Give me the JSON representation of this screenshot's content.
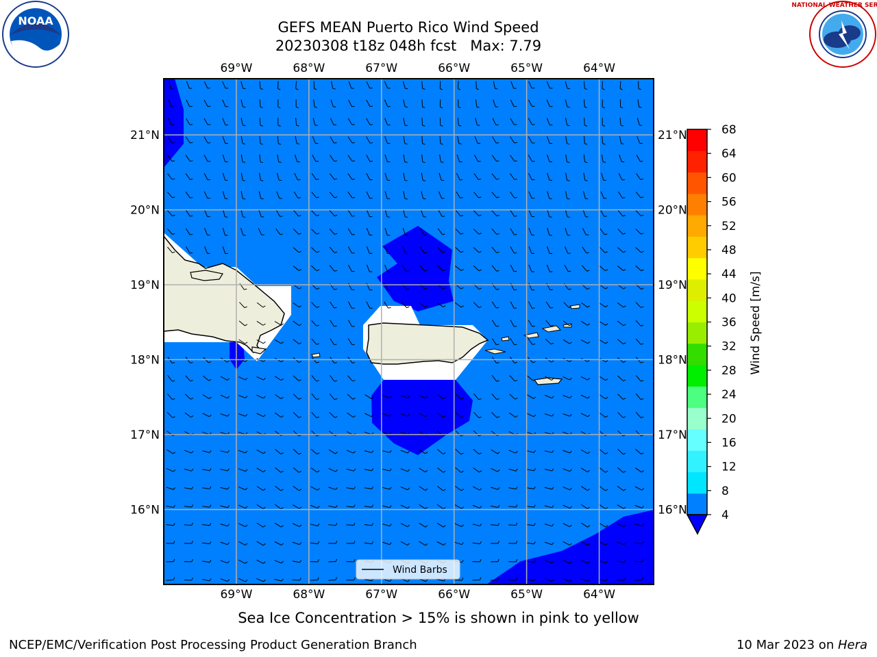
{
  "title_line1": "GEFS MEAN Puerto Rico Wind Speed",
  "title_line2": "20230308 t18z 048h fcst   Max: 7.79",
  "bottom_note": "Sea Ice Concentration > 15% is shown in pink to yellow",
  "footer_left": "NCEP/EMC/Verification Post Processing Product Generation Branch",
  "footer_date": "10 Mar 2023 on ",
  "footer_host": "Hera",
  "logo_left": "NOAA",
  "logo_left_ring": "NATIONAL OCEANIC AND ATMOSPHERIC ADMINISTRATION · U.S. DEPARTMENT OF COMMERCE",
  "logo_right_ring": "NATIONAL WEATHER SERVICE",
  "map": {
    "lon_range": [
      -70.0,
      -63.25
    ],
    "lat_range": [
      15.0,
      21.75
    ],
    "lon_labels": [
      "69°W",
      "68°W",
      "67°W",
      "66°W",
      "65°W",
      "64°W"
    ],
    "lat_labels": [
      "21°N",
      "20°N",
      "19°N",
      "18°N",
      "17°N",
      "16°N"
    ],
    "legend_label": "Wind Barbs",
    "colors": {
      "field_4_8": "#0080ff",
      "field_below_4": "#0000ff",
      "land": "#eeeedc"
    }
  },
  "colorbar": {
    "label": "Wind Speed [m/s]",
    "ticks": [
      "68",
      "64",
      "60",
      "56",
      "52",
      "48",
      "44",
      "40",
      "36",
      "32",
      "28",
      "24",
      "20",
      "16",
      "12",
      "8",
      "4"
    ],
    "colors_low_to_high": [
      "#0080ff",
      "#00e6ff",
      "#33f2ff",
      "#66ffff",
      "#99ffcc",
      "#4dff80",
      "#00ee00",
      "#33dd00",
      "#99ee00",
      "#ccff00",
      "#ddee00",
      "#ffff00",
      "#ffcc00",
      "#ffaa00",
      "#ff8000",
      "#ff5500",
      "#ff2200",
      "#ff0000"
    ],
    "under_color": "#0000ff"
  }
}
